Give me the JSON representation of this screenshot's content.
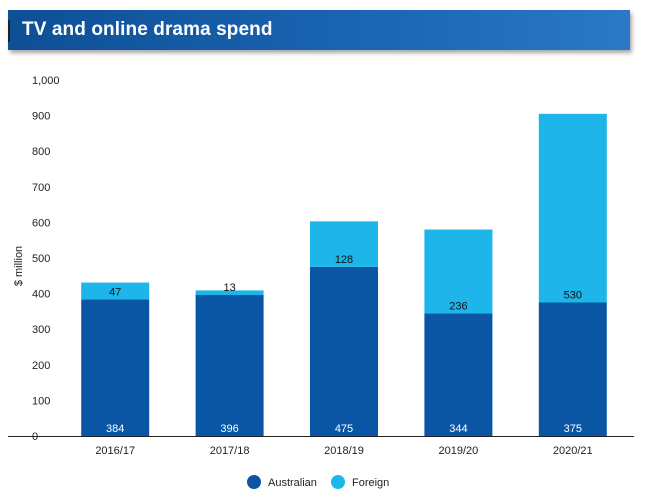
{
  "header": {
    "title": "TV and online drama spend"
  },
  "chart_data": {
    "type": "bar",
    "stacked": true,
    "title": "TV and online drama spend",
    "xlabel": "",
    "ylabel": "$ million",
    "ylim": [
      0,
      1000
    ],
    "yticks": [
      0,
      100,
      200,
      300,
      400,
      500,
      600,
      700,
      800,
      900,
      1000
    ],
    "ytick_labels": [
      "0",
      "100",
      "200",
      "300",
      "400",
      "500",
      "600",
      "700",
      "800",
      "900",
      "1,000"
    ],
    "categories": [
      "2016/17",
      "2017/18",
      "2018/19",
      "2019/20",
      "2020/21"
    ],
    "series": [
      {
        "name": "Australian",
        "values": [
          384,
          396,
          475,
          344,
          375
        ],
        "color": "#0b56a4"
      },
      {
        "name": "Foreign",
        "values": [
          47,
          13,
          128,
          236,
          530
        ],
        "color": "#1eb6ea"
      }
    ],
    "legend": "bottom-center",
    "grid": false
  }
}
